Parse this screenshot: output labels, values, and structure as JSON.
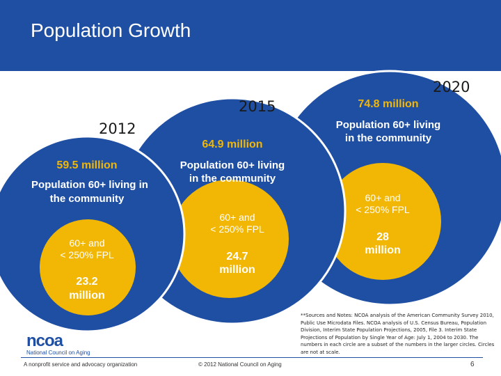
{
  "header": {
    "title": "Population Growth"
  },
  "colors": {
    "brand": "#1f4fa3",
    "outer_circle": "#1f4fa3",
    "inner_circle": "#f2b705",
    "amount_text": "#f2b705"
  },
  "circles": [
    {
      "year": "2012",
      "total": "59.5 million",
      "desc_line1": "Population 60+ living in",
      "desc_line2": "the community",
      "inner_label_line1": "60+ and",
      "inner_label_line2": "< 250% FPL",
      "inner_value_line1": "23.2",
      "inner_value_line2": "million"
    },
    {
      "year": "2015",
      "total": "64.9 million",
      "desc_line1": "Population 60+ living",
      "desc_line2": "in the community",
      "inner_label_line1": "60+ and",
      "inner_label_line2": "< 250% FPL",
      "inner_value_line1": "24.7",
      "inner_value_line2": "million"
    },
    {
      "year": "2020",
      "total": "74.8 million",
      "desc_line1": "Population 60+ living",
      "desc_line2": "in the community",
      "inner_label_line1": "60+ and",
      "inner_label_line2": "< 250% FPL",
      "inner_value_line1": "28",
      "inner_value_line2": "million"
    }
  ],
  "notes": "**Sources and Notes: NCOA analysis of the American Community Survey 2010, Public Use Microdata Files. NCOA analysis of U.S. Census Bureau, Population Division, Interim State Population Projections, 2005, File 3. Interim State Projections of Population by Single Year of Age: July 1, 2004 to 2030. The numbers in each circle are a subset of the numbers in the larger circles. Circles are not at scale.",
  "logo": {
    "mark": "ncoa",
    "subtitle": "National Council on Aging"
  },
  "footer": {
    "left": "A nonprofit service and advocacy organization",
    "center": "© 2012 National Council on Aging",
    "page": "6"
  }
}
